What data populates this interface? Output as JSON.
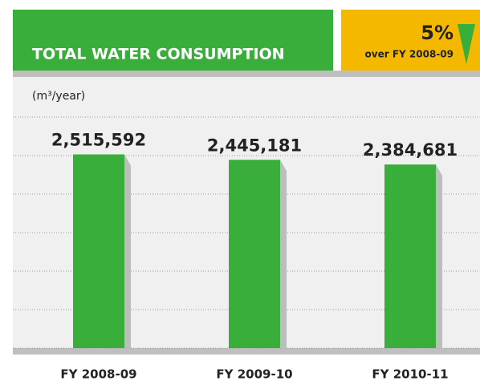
{
  "chart_data": {
    "type": "bar",
    "title": "TOTAL WATER CONSUMPTION",
    "change": "5%",
    "change_note": "over FY 2008-09",
    "y_label": "(m³/year)",
    "categories": [
      "FY 2008-09",
      "FY 2009-10",
      "FY 2010-11"
    ],
    "values": [
      2515592,
      2445181,
      2384681
    ],
    "value_labels": [
      "2,515,592",
      "2,445,181",
      "2,384,681"
    ],
    "color": "#3aae3a",
    "ylim": [
      0,
      3000000
    ],
    "yticks": [
      0,
      500000,
      1000000,
      1500000,
      2000000,
      2500000,
      3000000
    ],
    "grid": true
  }
}
